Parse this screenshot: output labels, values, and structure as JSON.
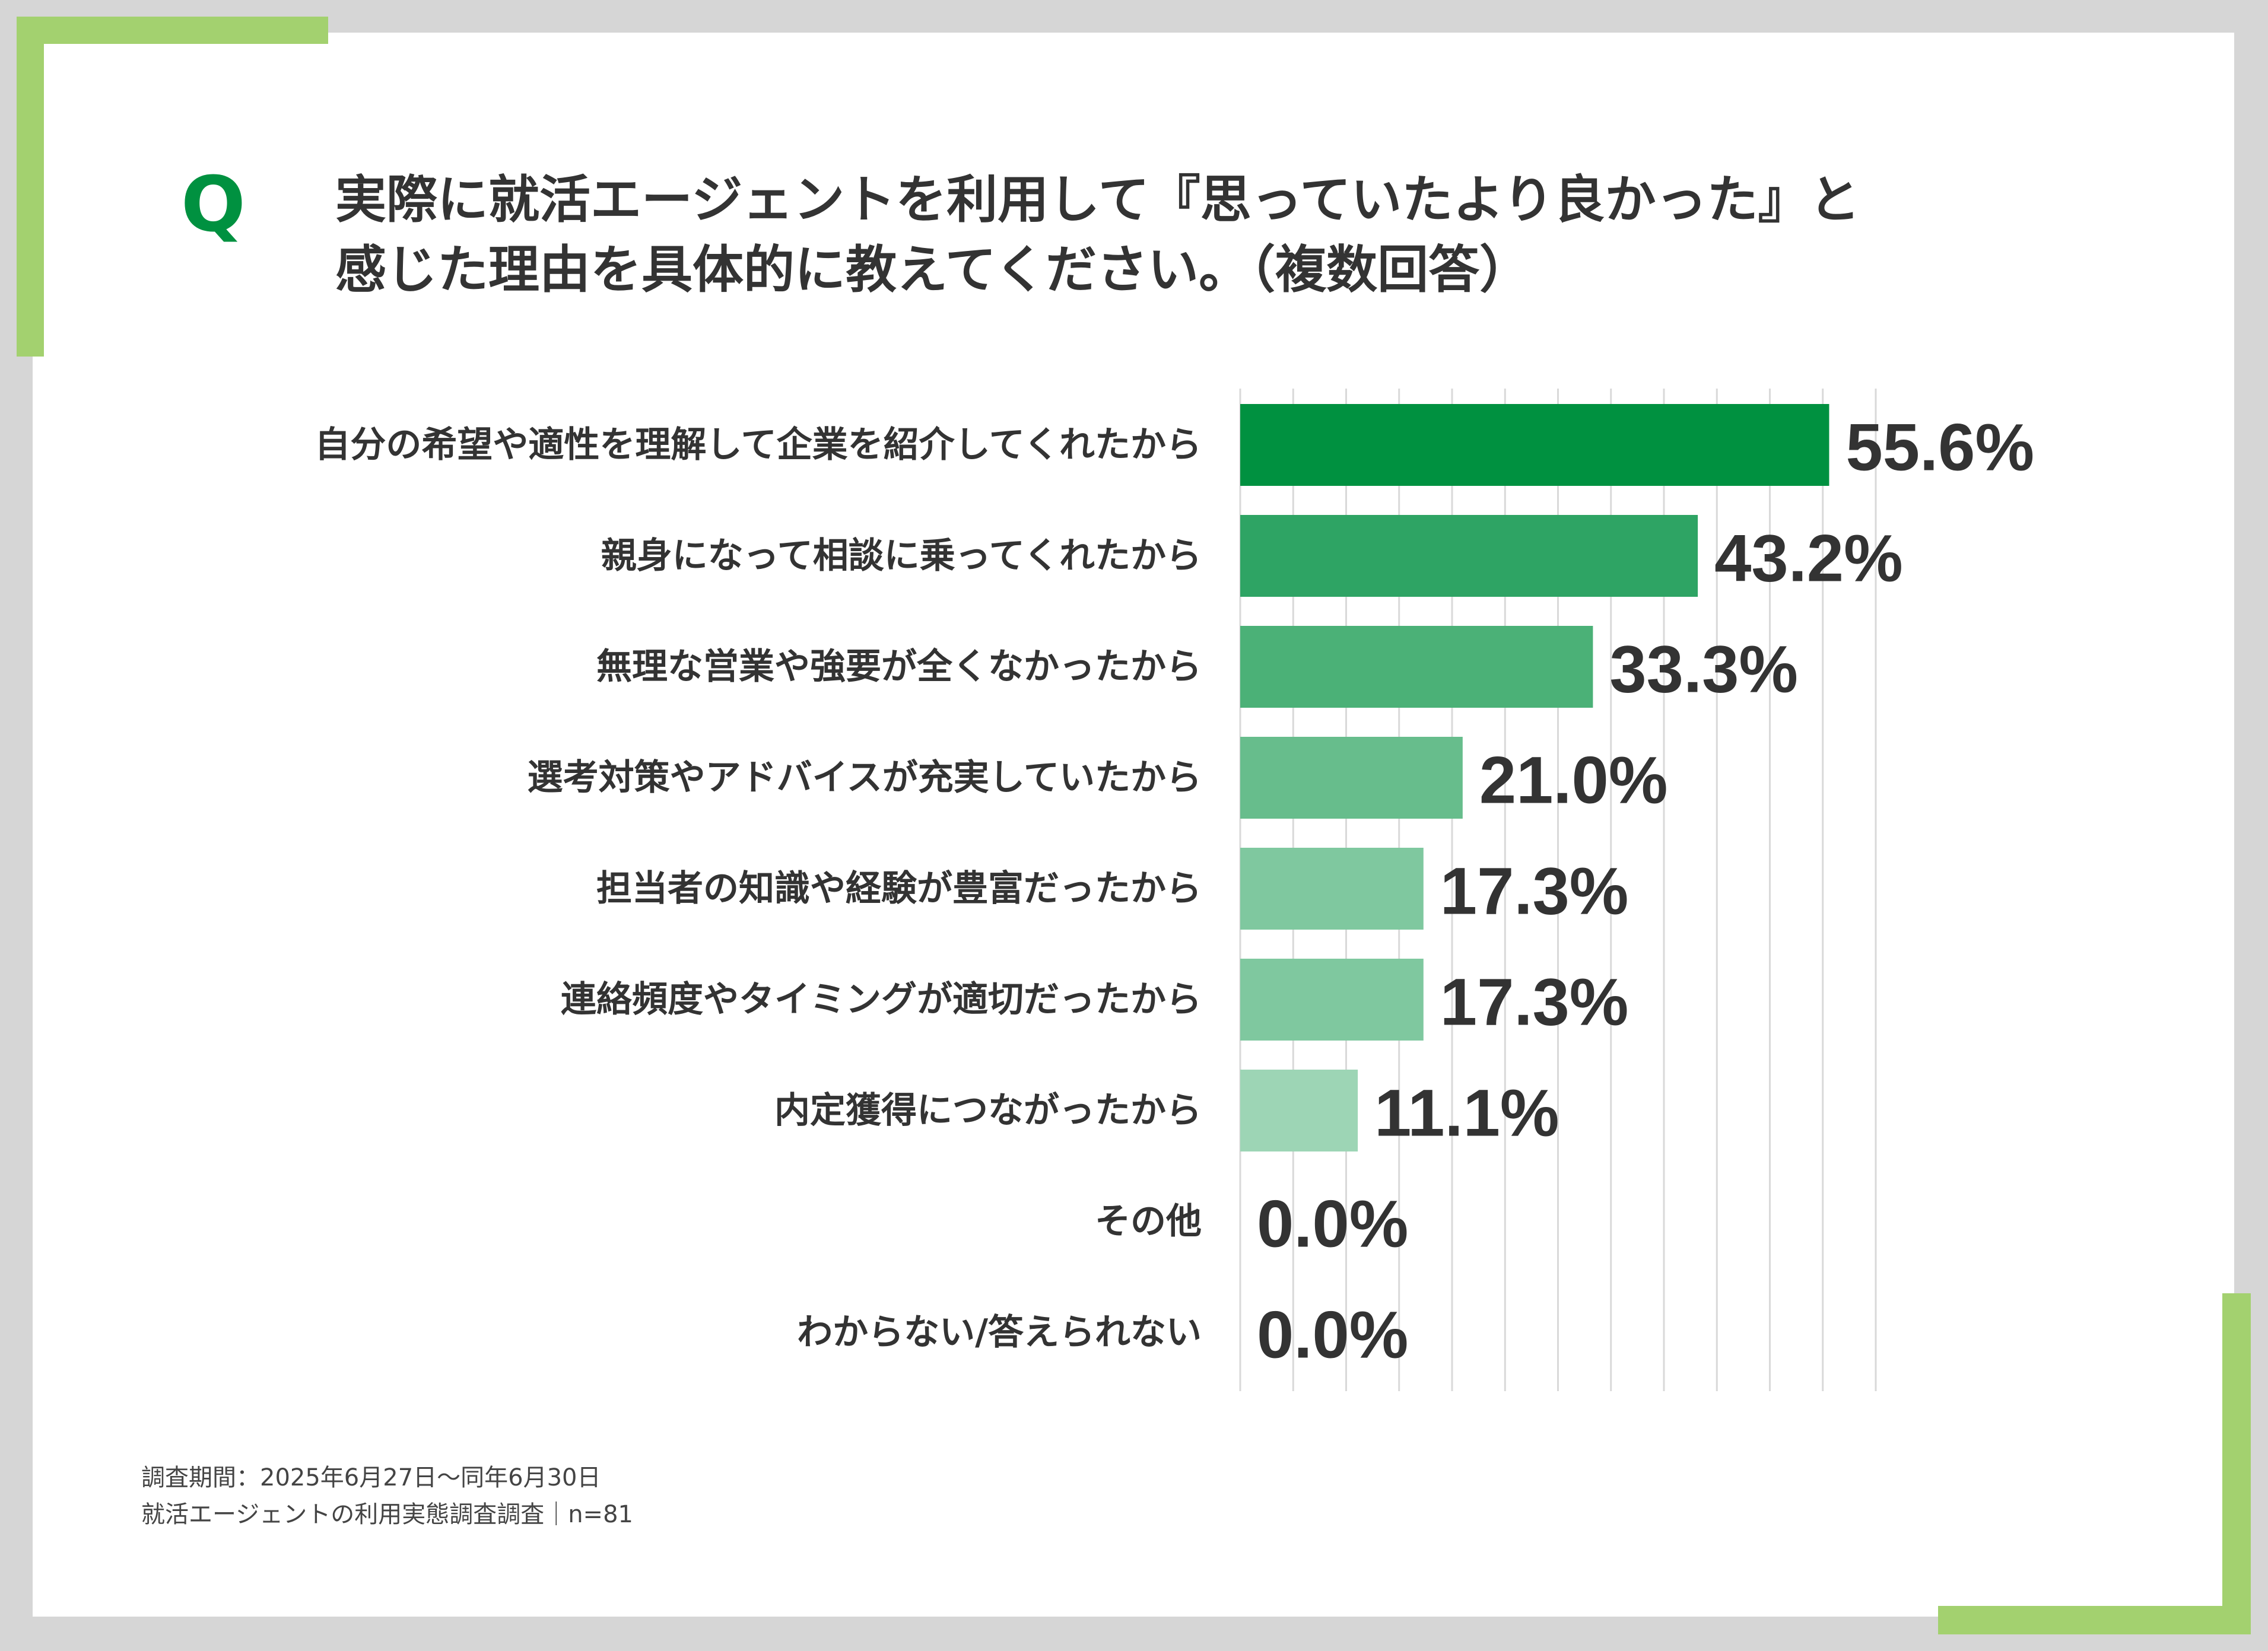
{
  "question": {
    "mark": "Q",
    "line1": "実際に就活エージェントを利用して『思っていたより良かった』と",
    "line2": "感じた理由を具体的に教えてください。（複数回答）"
  },
  "chart_data": {
    "type": "bar",
    "orientation": "horizontal",
    "categories": [
      "自分の希望や適性を理解して企業を紹介してくれたから",
      "親身になって相談に乗ってくれたから",
      "無理な営業や強要が全くなかったから",
      "選考対策やアドバイスが充実していたから",
      "担当者の知識や経験が豊富だったから",
      "連絡頻度やタイミングが適切だったから",
      "内定獲得につながったから",
      "その他",
      "わからない/答えられない"
    ],
    "values": [
      55.6,
      43.2,
      33.3,
      21.0,
      17.3,
      17.3,
      11.1,
      0.0,
      0.0
    ],
    "value_labels": [
      "55.6%",
      "43.2%",
      "33.3%",
      "21.0%",
      "17.3%",
      "17.3%",
      "11.1%",
      "0.0%",
      "0.0%"
    ],
    "bar_colors": [
      "#009140",
      "#2ea464",
      "#4bb177",
      "#67bd8c",
      "#7fc89f",
      "#7fc89f",
      "#9dd5b5",
      "#b7e0c8",
      "#b7e0c8"
    ],
    "xlim": [
      0,
      60
    ],
    "grid": true,
    "legend": "none"
  },
  "footnote": {
    "line1": "調査期間：2025年6月27日～同年6月30日",
    "line2": "就活エージェントの利用実態調査調査｜n=81"
  },
  "colors": {
    "accent": "#009140",
    "frame": "#a3d16f",
    "background": "#d6d6d6"
  }
}
